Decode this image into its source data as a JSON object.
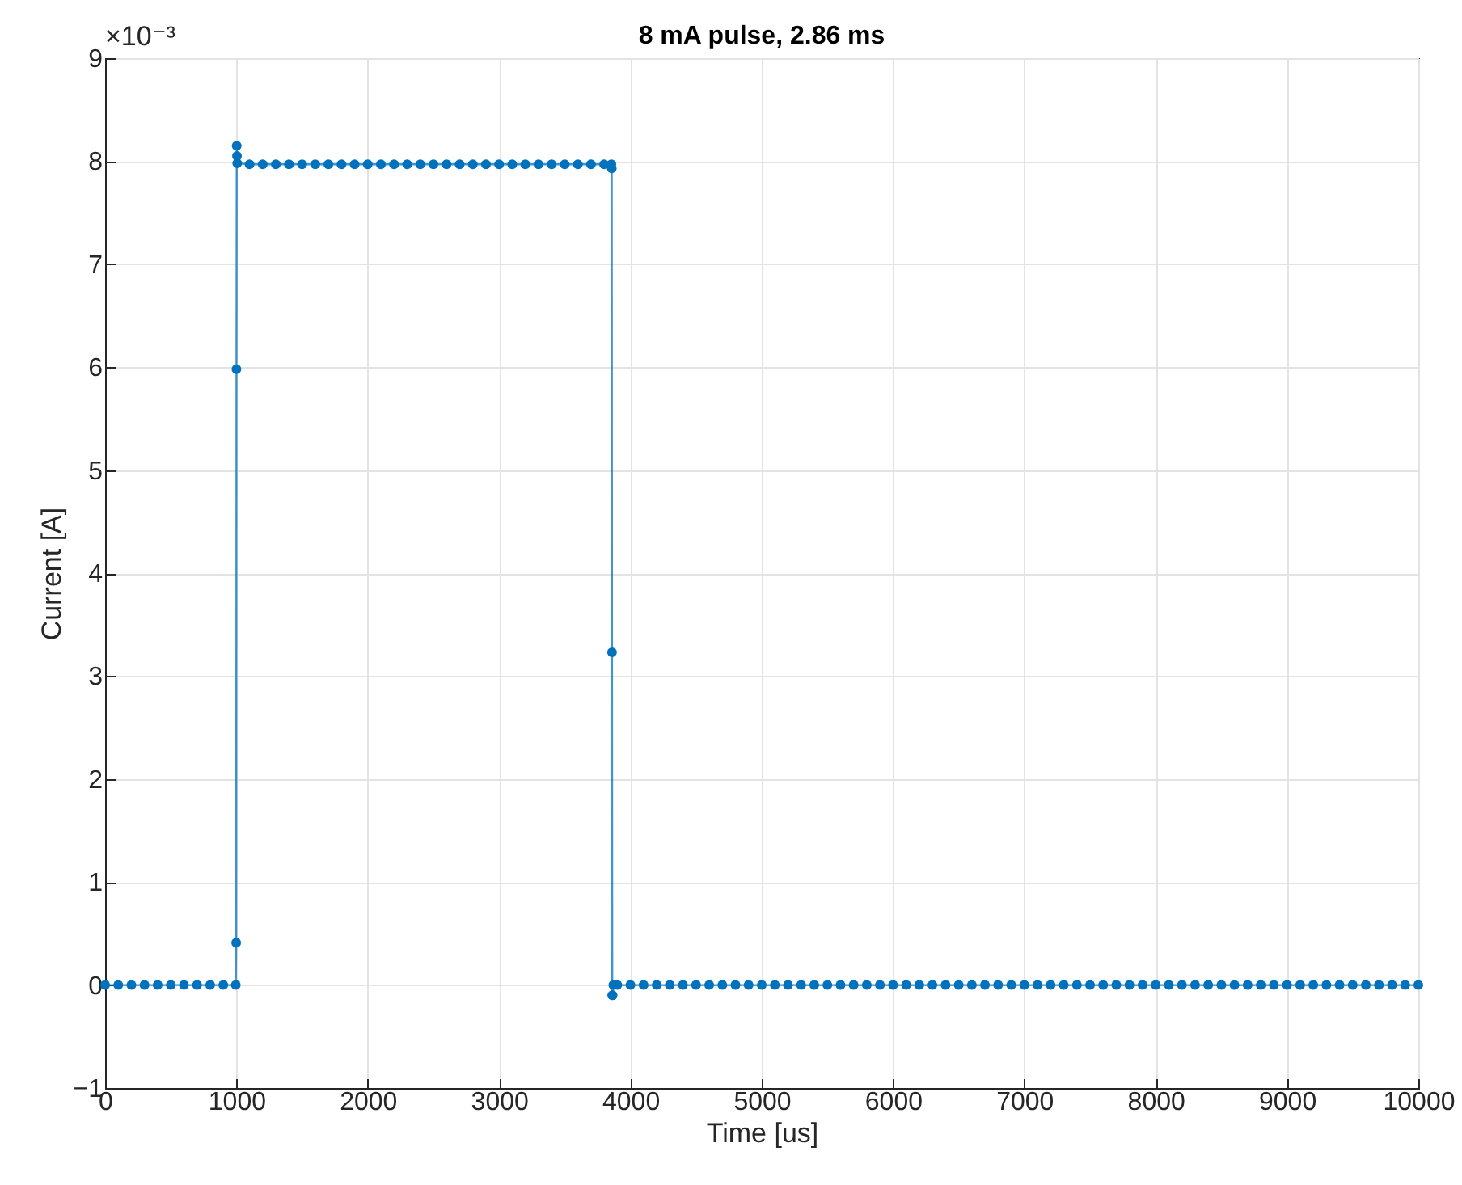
{
  "chart_data": {
    "type": "line",
    "title": "8 mA pulse, 2.86 ms",
    "xlabel": "Time [us]",
    "ylabel": "Current [A]",
    "annotations": [
      "×10⁻³"
    ],
    "x": [
      0,
      100,
      200,
      300,
      400,
      500,
      600,
      700,
      800,
      900,
      995,
      998,
      1000,
      1002,
      1004,
      1006,
      1100,
      1200,
      1300,
      1400,
      1500,
      1600,
      1700,
      1800,
      1900,
      2000,
      2100,
      2200,
      2300,
      2400,
      2500,
      2600,
      2700,
      2800,
      2900,
      3000,
      3100,
      3200,
      3300,
      3400,
      3500,
      3600,
      3700,
      3800,
      3855,
      3858,
      3860,
      3862,
      3864,
      3870,
      3900,
      4000,
      4100,
      4200,
      4300,
      4400,
      4500,
      4600,
      4700,
      4800,
      4900,
      5000,
      5100,
      5200,
      5300,
      5400,
      5500,
      5600,
      5700,
      5800,
      5900,
      6000,
      6100,
      6200,
      6300,
      6400,
      6500,
      6600,
      6700,
      6800,
      6900,
      7000,
      7100,
      7200,
      7300,
      7400,
      7500,
      7600,
      7700,
      7800,
      7900,
      8000,
      8100,
      8200,
      8300,
      8400,
      8500,
      8600,
      8700,
      8800,
      8900,
      9000,
      9100,
      9200,
      9300,
      9400,
      9500,
      9600,
      9700,
      9800,
      9900,
      10000
    ],
    "series": [
      {
        "color": "#0072bd",
        "values": [
          0,
          0,
          0,
          0,
          0,
          0,
          0,
          0,
          0,
          0,
          0,
          0.41,
          5.98,
          8.15,
          8.05,
          7.98,
          7.97,
          7.97,
          7.97,
          7.97,
          7.97,
          7.97,
          7.97,
          7.97,
          7.97,
          7.97,
          7.97,
          7.97,
          7.97,
          7.97,
          7.97,
          7.97,
          7.97,
          7.97,
          7.97,
          7.97,
          7.97,
          7.97,
          7.97,
          7.97,
          7.97,
          7.97,
          7.97,
          7.97,
          7.97,
          7.93,
          3.23,
          -0.1,
          -0.1,
          0,
          0,
          0,
          0,
          0,
          0,
          0,
          0,
          0,
          0,
          0,
          0,
          0,
          0,
          0,
          0,
          0,
          0,
          0,
          0,
          0,
          0,
          0,
          0,
          0,
          0,
          0,
          0,
          0,
          0,
          0,
          0,
          0,
          0,
          0,
          0,
          0,
          0,
          0,
          0,
          0,
          0,
          0,
          0,
          0,
          0,
          0,
          0,
          0,
          0,
          0,
          0,
          0,
          0,
          0,
          0,
          0,
          0,
          0,
          0,
          0,
          0,
          0
        ]
      }
    ],
    "xlim": [
      0,
      10000
    ],
    "xticks": [
      0,
      1000,
      2000,
      3000,
      4000,
      5000,
      6000,
      7000,
      8000,
      9000,
      10000
    ],
    "ylim": [
      -1,
      9
    ],
    "yticks": [
      -1,
      0,
      1,
      2,
      3,
      4,
      5,
      6,
      7,
      8,
      9
    ],
    "grid": true,
    "marker": "circle",
    "line_style": "solid",
    "legend": false
  }
}
